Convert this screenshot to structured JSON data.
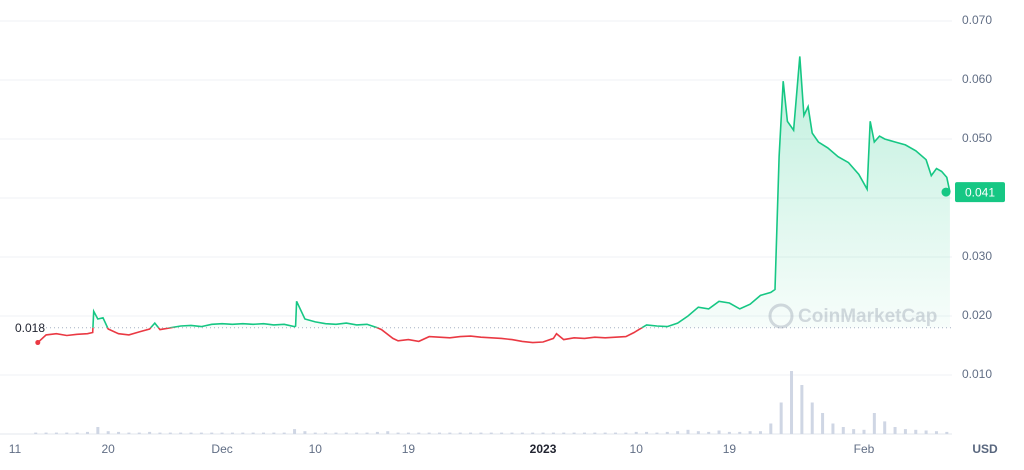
{
  "chart_data": {
    "type": "line",
    "xlim": [
      -1.45,
      90.5
    ],
    "ylim": [
      0,
      0.07
    ],
    "xticks": [
      {
        "value": 0,
        "label": "11"
      },
      {
        "value": 9,
        "label": "20"
      },
      {
        "value": 20,
        "label": "Dec"
      },
      {
        "value": 29,
        "label": "10"
      },
      {
        "value": 38,
        "label": "19"
      },
      {
        "value": 51,
        "label": "2023"
      },
      {
        "value": 60,
        "label": "10"
      },
      {
        "value": 69,
        "label": "19"
      },
      {
        "value": 82,
        "label": "Feb"
      }
    ],
    "yticks": [
      {
        "value": 0.01,
        "label": "0.010"
      },
      {
        "value": 0.02,
        "label": "0.020"
      },
      {
        "value": 0.03,
        "label": "0.030"
      },
      {
        "value": 0.04,
        "label": "0.040"
      },
      {
        "value": 0.05,
        "label": "0.050"
      },
      {
        "value": 0.06,
        "label": "0.060"
      },
      {
        "value": 0.07,
        "label": "0.070"
      }
    ],
    "y_axis_unit": "USD",
    "reference_line": 0.018,
    "current_price": 0.041,
    "watermark": "CoinMarketCap",
    "grid": true,
    "up_color": "#16c784",
    "down_color": "#ea3943",
    "series": [
      {
        "x": [
          2.2,
          3,
          4,
          5,
          6,
          7,
          7.5,
          7.6,
          8,
          8.5,
          9,
          10,
          11,
          12,
          13,
          13.5,
          14,
          15,
          16,
          17,
          18,
          19,
          20,
          21,
          22,
          23,
          24,
          25,
          26,
          27,
          27.1,
          27.2,
          28,
          29,
          30,
          31,
          32,
          33,
          34,
          35,
          35.4,
          36.5,
          37,
          38,
          39,
          40,
          41,
          42,
          43,
          44,
          45,
          46,
          47,
          48,
          49,
          50,
          51,
          52,
          52.3,
          53,
          54,
          55,
          56,
          57,
          58,
          59,
          59.8,
          61,
          62,
          63,
          64,
          65,
          66,
          67,
          68,
          69,
          70,
          71,
          72,
          73,
          73.4,
          73.8,
          74.2,
          74.6,
          75.2,
          75.8,
          76.2,
          76.6,
          77,
          77.6,
          78.5,
          79.5,
          80.5,
          81.5,
          82.3,
          82.6,
          83,
          83.5,
          84,
          85,
          86,
          87,
          88,
          88.5,
          89,
          89.5,
          90,
          90.3
        ],
        "values": [
          0.0155,
          0.0168,
          0.017,
          0.0167,
          0.0169,
          0.017,
          0.0172,
          0.0208,
          0.0195,
          0.0197,
          0.0178,
          0.017,
          0.0168,
          0.0173,
          0.0178,
          0.0188,
          0.0177,
          0.018,
          0.0183,
          0.0184,
          0.0182,
          0.0186,
          0.0187,
          0.0186,
          0.0187,
          0.0186,
          0.0187,
          0.0185,
          0.0186,
          0.0182,
          0.0183,
          0.0225,
          0.0195,
          0.019,
          0.0187,
          0.0186,
          0.0188,
          0.0185,
          0.0186,
          0.018,
          0.0177,
          0.0162,
          0.0158,
          0.016,
          0.0157,
          0.0165,
          0.0164,
          0.0163,
          0.0165,
          0.0166,
          0.0164,
          0.0163,
          0.0162,
          0.016,
          0.0157,
          0.0155,
          0.0156,
          0.0162,
          0.017,
          0.016,
          0.0163,
          0.0162,
          0.0164,
          0.0163,
          0.0164,
          0.0165,
          0.0172,
          0.0185,
          0.0183,
          0.0182,
          0.0188,
          0.02,
          0.0215,
          0.0212,
          0.0225,
          0.0222,
          0.0212,
          0.022,
          0.0235,
          0.024,
          0.0245,
          0.047,
          0.0598,
          0.053,
          0.0515,
          0.064,
          0.054,
          0.0555,
          0.051,
          0.0495,
          0.0485,
          0.047,
          0.046,
          0.044,
          0.0415,
          0.053,
          0.0495,
          0.0505,
          0.05,
          0.0495,
          0.049,
          0.048,
          0.0465,
          0.0438,
          0.045,
          0.0445,
          0.0435,
          0.041
        ]
      },
      {
        "axis": "y2",
        "color": "#cfd6e4",
        "x": [
          2,
          3,
          4,
          5,
          6,
          7,
          8,
          9,
          10,
          11,
          12,
          13,
          14,
          15,
          16,
          17,
          18,
          19,
          20,
          21,
          22,
          23,
          24,
          25,
          26,
          27,
          28,
          29,
          30,
          31,
          32,
          33,
          34,
          35,
          36,
          37,
          38,
          39,
          40,
          41,
          42,
          43,
          44,
          45,
          46,
          47,
          48,
          49,
          50,
          51,
          52,
          53,
          54,
          55,
          56,
          57,
          58,
          59,
          60,
          61,
          62,
          63,
          64,
          65,
          66,
          67,
          68,
          69,
          70,
          71,
          72,
          73,
          74,
          75,
          76,
          77,
          78,
          79,
          80,
          81,
          82,
          83,
          84,
          85,
          86,
          87,
          88,
          89,
          90
        ],
        "values": [
          2,
          2,
          2,
          2,
          2,
          3,
          10,
          4,
          3,
          2,
          2,
          3,
          2,
          2,
          2,
          2,
          2,
          2,
          2,
          2,
          2,
          2,
          2,
          2,
          2,
          7,
          4,
          2,
          2,
          2,
          2,
          2,
          2,
          3,
          4,
          2,
          2,
          2,
          2,
          2,
          2,
          2,
          2,
          2,
          2,
          2,
          2,
          2,
          2,
          2,
          2,
          2,
          2,
          2,
          2,
          2,
          2,
          2,
          3,
          3,
          2,
          3,
          4,
          6,
          4,
          3,
          5,
          3,
          3,
          4,
          4,
          15,
          45,
          90,
          70,
          45,
          30,
          15,
          10,
          7,
          6,
          30,
          18,
          10,
          7,
          6,
          5,
          4,
          3
        ]
      }
    ],
    "y2lim": [
      0,
      100
    ]
  }
}
